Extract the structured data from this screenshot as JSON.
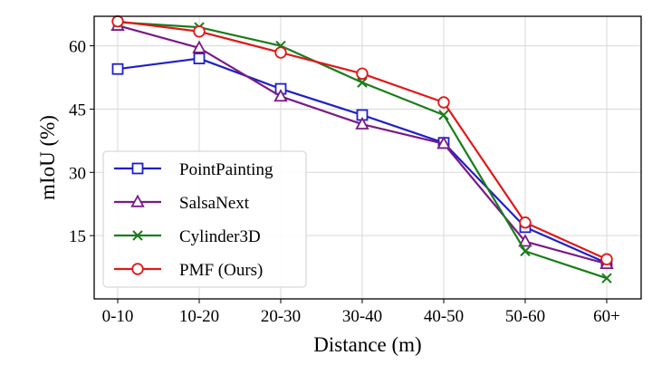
{
  "chart_data": {
    "type": "line",
    "title": "",
    "xlabel": "Distance (m)",
    "ylabel": "mIoU (%)",
    "categories": [
      "0-10",
      "10-20",
      "20-30",
      "30-40",
      "40-50",
      "50-60",
      "60+"
    ],
    "ylim": [
      0,
      67
    ],
    "yticks": [
      15,
      30,
      45,
      60
    ],
    "grid": true,
    "legend_position": "lower-left",
    "series": [
      {
        "name": "PointPainting",
        "color": "#1f1fc8",
        "marker": "square",
        "values": [
          54.5,
          57.0,
          49.8,
          43.6,
          37.0,
          17.0,
          8.5
        ]
      },
      {
        "name": "SalsaNext",
        "color": "#7a1a86",
        "marker": "triangle",
        "values": [
          64.8,
          59.5,
          48.0,
          41.4,
          36.8,
          13.6,
          8.3
        ]
      },
      {
        "name": "Cylinder3D",
        "color": "#1a7d1a",
        "marker": "x",
        "values": [
          65.6,
          64.4,
          60.0,
          51.3,
          43.6,
          11.3,
          4.9
        ]
      },
      {
        "name": "PMF (Ours)",
        "color": "#e01818",
        "marker": "circle",
        "values": [
          65.8,
          63.4,
          58.4,
          53.4,
          46.6,
          18.1,
          9.4
        ]
      }
    ]
  }
}
